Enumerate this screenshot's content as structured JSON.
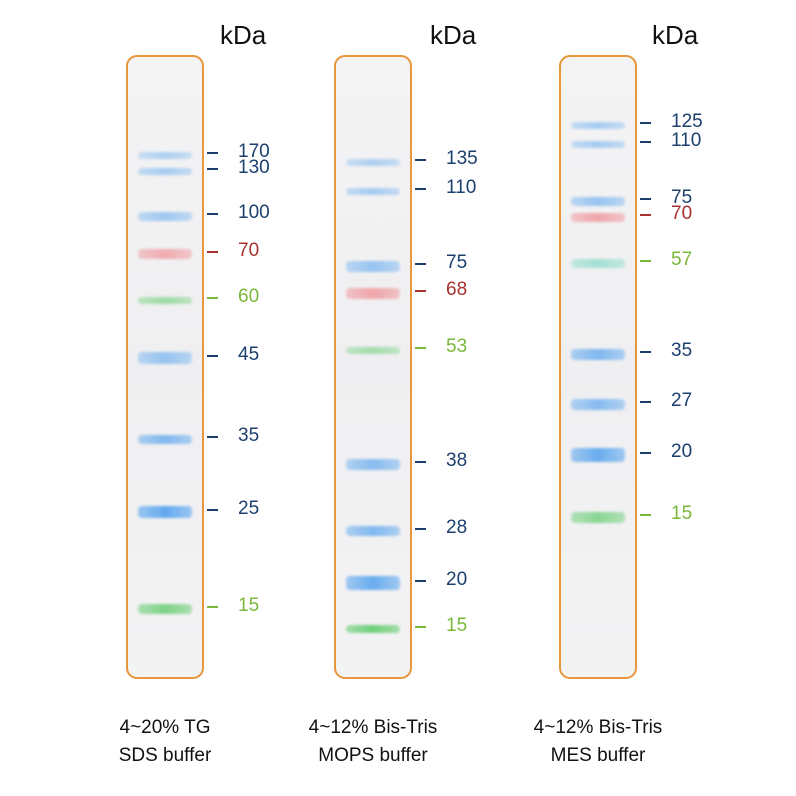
{
  "unit_label": "kDa",
  "colors": {
    "blue": "#5aa5ee",
    "red": "#ee7d83",
    "green": "#6fcf7a",
    "teal": "#6fd5c0",
    "label_blue": "#1c3f6e",
    "label_red": "#a83232",
    "label_green": "#7ab83a",
    "lane_border": "#e8963c"
  },
  "gels": [
    {
      "caption": [
        "4~20% TG",
        "SDS buffer"
      ],
      "markers": [
        {
          "kda": "170",
          "band": "blue",
          "label": "blue",
          "intensity": 0.45
        },
        {
          "kda": "130",
          "band": "blue",
          "label": "blue",
          "intensity": 0.5
        },
        {
          "kda": "100",
          "band": "blue",
          "label": "blue",
          "intensity": 0.55
        },
        {
          "kda": "70",
          "band": "red",
          "label": "red",
          "intensity": 0.6
        },
        {
          "kda": "60",
          "band": "green",
          "label": "green",
          "intensity": 0.65
        },
        {
          "kda": "45",
          "band": "blue",
          "label": "blue",
          "intensity": 0.6
        },
        {
          "kda": "35",
          "band": "blue",
          "label": "blue",
          "intensity": 0.75
        },
        {
          "kda": "25",
          "band": "blue",
          "label": "blue",
          "intensity": 0.95
        },
        {
          "kda": "15",
          "band": "green",
          "label": "green",
          "intensity": 0.9
        }
      ]
    },
    {
      "caption": [
        "4~12% Bis-Tris",
        "MOPS buffer"
      ],
      "markers": [
        {
          "kda": "135",
          "band": "blue",
          "label": "blue",
          "intensity": 0.45
        },
        {
          "kda": "110",
          "band": "blue",
          "label": "blue",
          "intensity": 0.5
        },
        {
          "kda": "75",
          "band": "blue",
          "label": "blue",
          "intensity": 0.6
        },
        {
          "kda": "68",
          "band": "red",
          "label": "red",
          "intensity": 0.65
        },
        {
          "kda": "53",
          "band": "green",
          "label": "green",
          "intensity": 0.6
        },
        {
          "kda": "38",
          "band": "blue",
          "label": "blue",
          "intensity": 0.7
        },
        {
          "kda": "28",
          "band": "blue",
          "label": "blue",
          "intensity": 0.75
        },
        {
          "kda": "20",
          "band": "blue",
          "label": "blue",
          "intensity": 0.9
        },
        {
          "kda": "15",
          "band": "green",
          "label": "green",
          "intensity": 1.0
        }
      ]
    },
    {
      "caption": [
        "4~12% Bis-Tris",
        "MES buffer"
      ],
      "markers": [
        {
          "kda": "125",
          "band": "blue",
          "label": "blue",
          "intensity": 0.5
        },
        {
          "kda": "110",
          "band": "blue",
          "label": "blue",
          "intensity": 0.5
        },
        {
          "kda": "75",
          "band": "blue",
          "label": "blue",
          "intensity": 0.6
        },
        {
          "kda": "70",
          "band": "red",
          "label": "red",
          "intensity": 0.65
        },
        {
          "kda": "57",
          "band": "teal",
          "label": "green",
          "intensity": 0.6
        },
        {
          "kda": "35",
          "band": "blue",
          "label": "blue",
          "intensity": 0.75
        },
        {
          "kda": "27",
          "band": "blue",
          "label": "blue",
          "intensity": 0.7
        },
        {
          "kda": "20",
          "band": "blue",
          "label": "blue",
          "intensity": 0.9
        },
        {
          "kda": "15",
          "band": "green",
          "label": "green",
          "intensity": 0.8
        }
      ]
    }
  ]
}
